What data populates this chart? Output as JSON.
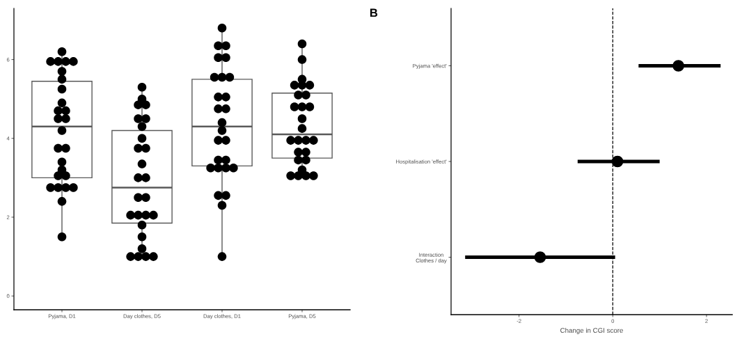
{
  "chart_data": [
    {
      "type": "box",
      "categories": [
        "Pyjama, D1",
        "Day clothes, D5",
        "Day clothes, D1",
        "Pyjama, D5"
      ],
      "color": "#595959",
      "boxes": [
        {
          "low": 1.5,
          "q1": 3.0,
          "median": 4.3,
          "q3": 5.45,
          "high": 6.2
        },
        {
          "low": 1.0,
          "q1": 1.85,
          "median": 2.75,
          "q3": 4.2,
          "high": 5.3
        },
        {
          "low": 1.0,
          "q1": 3.3,
          "median": 4.3,
          "q3": 5.5,
          "high": 6.8
        },
        {
          "low": 3.05,
          "q1": 3.5,
          "median": 4.1,
          "q3": 5.15,
          "high": 6.4
        }
      ],
      "series": [
        {
          "type": "scatter",
          "color": "#000000",
          "marker": "circle",
          "x": [
            "Pyjama, D1",
            "Pyjama, D1",
            "Pyjama, D1",
            "Pyjama, D1",
            "Pyjama, D1",
            "Pyjama, D1",
            "Pyjama, D1",
            "Pyjama, D1",
            "Pyjama, D1",
            "Pyjama, D1",
            "Pyjama, D1",
            "Pyjama, D1",
            "Pyjama, D1",
            "Pyjama, D1",
            "Pyjama, D1",
            "Pyjama, D1",
            "Pyjama, D1",
            "Pyjama, D1",
            "Pyjama, D1",
            "Pyjama, D1",
            "Pyjama, D1",
            "Pyjama, D1",
            "Pyjama, D1",
            "Pyjama, D1",
            "Pyjama, D1",
            "Pyjama, D1",
            "Day clothes, D5",
            "Day clothes, D5",
            "Day clothes, D5",
            "Day clothes, D5",
            "Day clothes, D5",
            "Day clothes, D5",
            "Day clothes, D5",
            "Day clothes, D5",
            "Day clothes, D5",
            "Day clothes, D5",
            "Day clothes, D5",
            "Day clothes, D5",
            "Day clothes, D5",
            "Day clothes, D5",
            "Day clothes, D5",
            "Day clothes, D5",
            "Day clothes, D5",
            "Day clothes, D5",
            "Day clothes, D5",
            "Day clothes, D5",
            "Day clothes, D5",
            "Day clothes, D5",
            "Day clothes, D5",
            "Day clothes, D5",
            "Day clothes, D5",
            "Day clothes, D5",
            "Day clothes, D1",
            "Day clothes, D1",
            "Day clothes, D1",
            "Day clothes, D1",
            "Day clothes, D1",
            "Day clothes, D1",
            "Day clothes, D1",
            "Day clothes, D1",
            "Day clothes, D1",
            "Day clothes, D1",
            "Day clothes, D1",
            "Day clothes, D1",
            "Day clothes, D1",
            "Day clothes, D1",
            "Day clothes, D1",
            "Day clothes, D1",
            "Day clothes, D1",
            "Day clothes, D1",
            "Day clothes, D1",
            "Day clothes, D1",
            "Day clothes, D1",
            "Day clothes, D1",
            "Day clothes, D1",
            "Day clothes, D1",
            "Day clothes, D1",
            "Day clothes, D1",
            "Pyjama, D5",
            "Pyjama, D5",
            "Pyjama, D5",
            "Pyjama, D5",
            "Pyjama, D5",
            "Pyjama, D5",
            "Pyjama, D5",
            "Pyjama, D5",
            "Pyjama, D5",
            "Pyjama, D5",
            "Pyjama, D5",
            "Pyjama, D5",
            "Pyjama, D5",
            "Pyjama, D5",
            "Pyjama, D5",
            "Pyjama, D5",
            "Pyjama, D5",
            "Pyjama, D5",
            "Pyjama, D5",
            "Pyjama, D5",
            "Pyjama, D5",
            "Pyjama, D5",
            "Pyjama, D5",
            "Pyjama, D5",
            "Pyjama, D5",
            "Pyjama, D5"
          ],
          "values": [
            6.2,
            5.95,
            5.95,
            5.95,
            5.95,
            5.7,
            5.5,
            5.25,
            4.9,
            4.7,
            4.7,
            4.5,
            4.5,
            4.2,
            3.75,
            3.75,
            3.4,
            3.2,
            3.05,
            3.05,
            2.75,
            2.75,
            2.75,
            2.75,
            2.4,
            1.5,
            5.3,
            5.0,
            4.85,
            4.85,
            4.5,
            4.5,
            4.3,
            4.0,
            3.75,
            3.75,
            3.35,
            3.0,
            3.0,
            2.5,
            2.5,
            2.05,
            2.05,
            2.05,
            2.05,
            1.8,
            1.5,
            1.2,
            1.0,
            1.0,
            1.0,
            1.0,
            6.8,
            6.35,
            6.35,
            6.05,
            6.05,
            5.55,
            5.55,
            5.55,
            5.05,
            5.05,
            4.75,
            4.75,
            4.4,
            4.2,
            3.95,
            3.95,
            3.45,
            3.45,
            3.25,
            3.25,
            3.25,
            3.25,
            2.55,
            2.55,
            2.3,
            1.0,
            6.4,
            6.0,
            5.5,
            5.35,
            5.35,
            5.35,
            5.1,
            5.1,
            4.8,
            4.8,
            4.8,
            4.5,
            4.25,
            3.95,
            3.95,
            3.95,
            3.95,
            3.65,
            3.65,
            3.45,
            3.45,
            3.2,
            3.05,
            3.05,
            3.05,
            3.05
          ]
        }
      ],
      "ylim": [
        -0.35,
        7.3
      ],
      "yticks": [
        0,
        2,
        4,
        6
      ]
    },
    {
      "type": "scatter",
      "title": "B",
      "orientation": "horizontal",
      "categories": [
        "Pyjama 'effect'",
        "Hospitalisation 'effect'",
        "Interaction\nClothes / day"
      ],
      "values": [
        1.4,
        0.1,
        -1.55
      ],
      "errors": [
        [
          0.55,
          2.3
        ],
        [
          -0.75,
          1.0
        ],
        [
          -3.15,
          0.05
        ]
      ],
      "color": "#000000",
      "marker": "circle",
      "xlabel": "Change in CGI score",
      "xlim": [
        -3.45,
        2.55
      ],
      "xticks": [
        -2,
        0,
        2
      ],
      "ref_lines": [
        {
          "axis": "x",
          "value": 0,
          "color": "#000000",
          "line_style": "dashed"
        }
      ]
    }
  ]
}
